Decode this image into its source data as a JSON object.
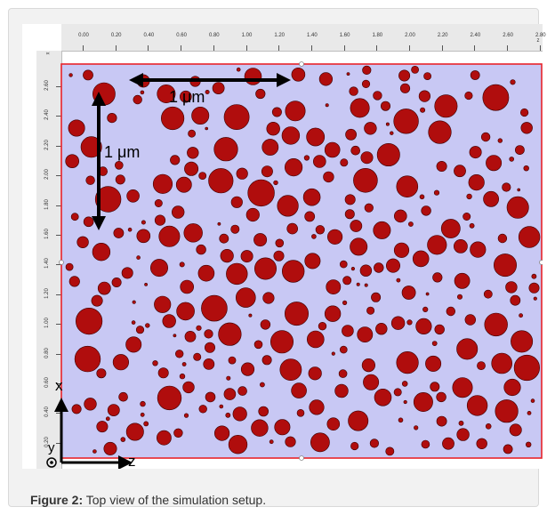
{
  "ruler": {
    "x_ticks": [
      "0.00",
      "0.20",
      "0.40",
      "0.60",
      "0.80",
      "1.00",
      "1.20",
      "1.40",
      "1.60",
      "1.80",
      "2.00",
      "2.20",
      "2.40",
      "2.60",
      "2.80"
    ],
    "x_end_label": "z",
    "y_ticks": [
      "2.60",
      "2.40",
      "2.20",
      "2.00",
      "1.80",
      "1.60",
      "1.40",
      "1.20",
      "1.00",
      "0.80",
      "0.60",
      "0.40",
      "0.20"
    ],
    "y_end_label": "x"
  },
  "annotations": {
    "scale_horizontal": "1 μm",
    "scale_vertical": "1 μm",
    "axis_x": "x",
    "axis_y": "y",
    "axis_z": "z"
  },
  "colors": {
    "background": "#c8c8f4",
    "boundary": "#e8242a",
    "particle": "#b00d0d",
    "particle_edge": "#3a0000"
  },
  "caption": {
    "label": "Figure 2:",
    "text": " Top view of the simulation setup."
  }
}
